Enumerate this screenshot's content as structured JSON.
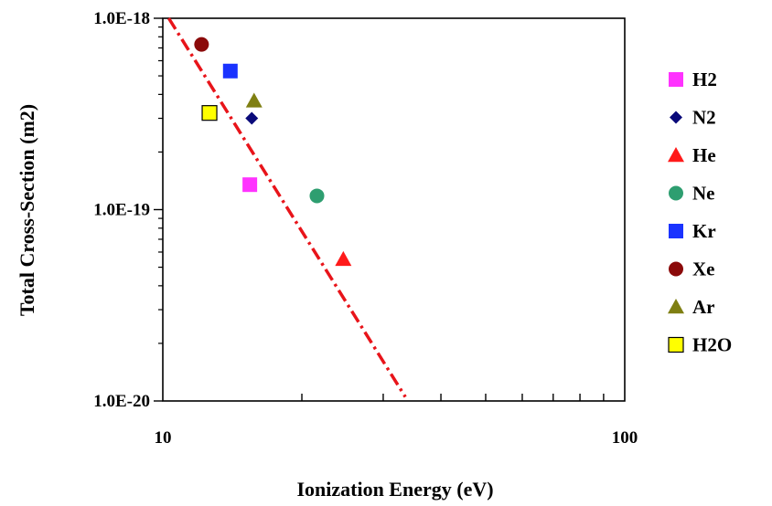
{
  "chart_data": {
    "type": "scatter",
    "x_scale": "log",
    "y_scale": "log",
    "xlabel": "Ionization Energy (eV)",
    "ylabel": "Total Cross-Section (m2)",
    "xlim": [
      10,
      100
    ],
    "ylim": [
      1e-20,
      1e-18
    ],
    "x_tick_labels": [
      {
        "value": 10,
        "label": "10"
      },
      {
        "value": 100,
        "label": "100"
      }
    ],
    "y_tick_labels": [
      {
        "value": 1e-18,
        "label": "1.0E-18"
      },
      {
        "value": 1e-19,
        "label": "1.0E-19"
      },
      {
        "value": 1e-20,
        "label": "1.0E-20"
      }
    ],
    "grid": false,
    "legend_position": "right",
    "series": [
      {
        "name": "H2",
        "marker": "square",
        "color": "#ff33ff",
        "x": 15.43,
        "y": 1.35e-19
      },
      {
        "name": "N2",
        "marker": "diamond",
        "color": "#0a0a7a",
        "x": 15.58,
        "y": 3e-19
      },
      {
        "name": "He",
        "marker": "triangle",
        "color": "#ff1a1a",
        "x": 24.59,
        "y": 5.5e-20
      },
      {
        "name": "Ne",
        "marker": "circle",
        "color": "#2e9e70",
        "x": 21.56,
        "y": 1.18e-19
      },
      {
        "name": "Kr",
        "marker": "square",
        "color": "#1a33ff",
        "x": 14.0,
        "y": 5.3e-19
      },
      {
        "name": "Xe",
        "marker": "circle",
        "color": "#8b0a0a",
        "x": 12.13,
        "y": 7.3e-19
      },
      {
        "name": "Ar",
        "marker": "triangle",
        "color": "#7f7f12",
        "x": 15.76,
        "y": 3.7e-19
      },
      {
        "name": "H2O",
        "marker": "square",
        "color": "#ffff00",
        "x": 12.62,
        "y": 3.2e-19
      }
    ],
    "fit_line": {
      "style": "dash-dot",
      "color": "#e8141a",
      "points": [
        [
          10.3,
          1e-18
        ],
        [
          33.5,
          1.05e-20
        ]
      ]
    }
  }
}
